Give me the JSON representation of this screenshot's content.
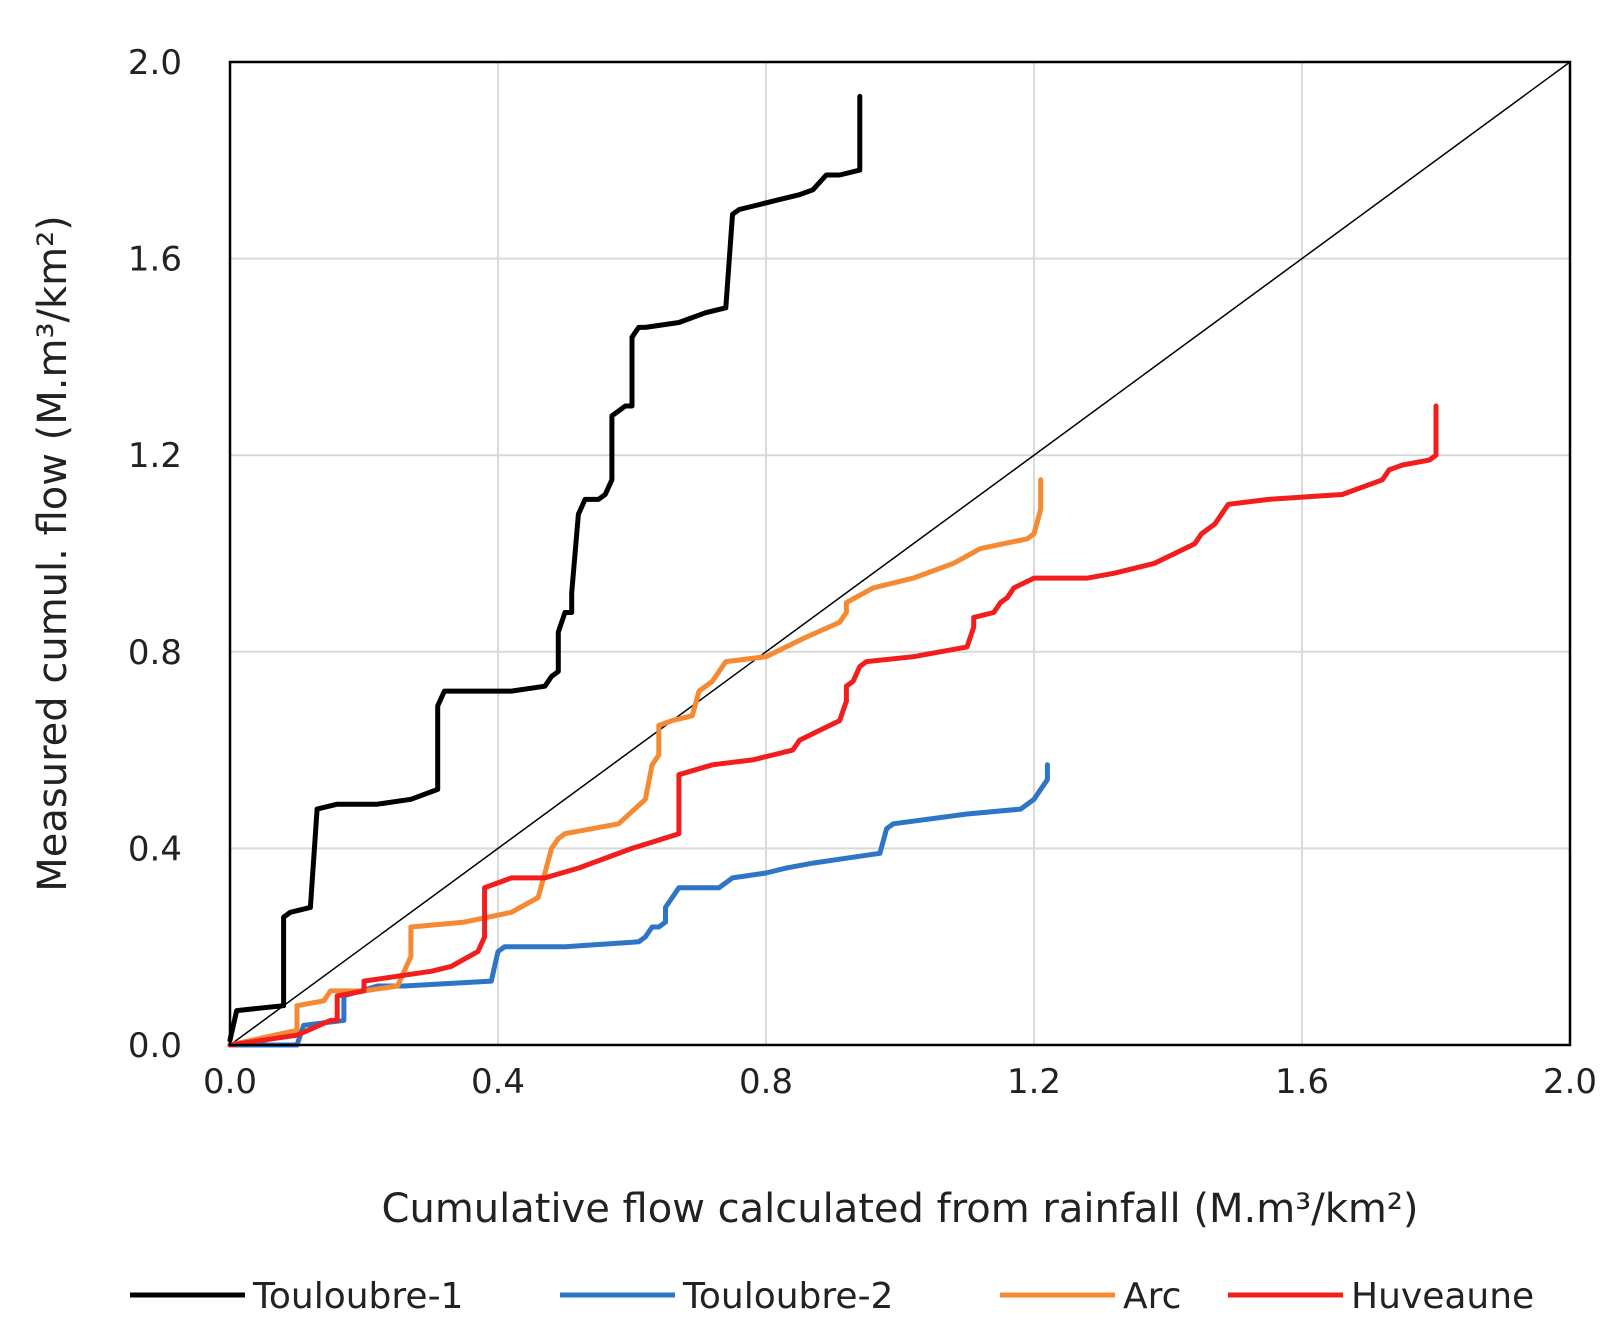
{
  "chart_data": {
    "type": "line",
    "title": "",
    "xlabel": "Cumulative flow calculated from rainfall (M.m³/km²)",
    "ylabel": "Measured cumul. flow (M.m³/km²)",
    "xlim": [
      0,
      2.0
    ],
    "ylim": [
      0,
      2.0
    ],
    "xticks": [
      "0.0",
      "0.4",
      "0.8",
      "1.2",
      "1.6",
      "2.0"
    ],
    "yticks": [
      "0.0",
      "0.4",
      "0.8",
      "1.2",
      "1.6",
      "2.0"
    ],
    "grid": true,
    "legend_position": "bottom",
    "reference_line": {
      "name": "1:1 line",
      "color": "#000000",
      "x": [
        0,
        2.0
      ],
      "y": [
        0,
        2.0
      ]
    },
    "series": [
      {
        "name": "Touloubre-1",
        "color": "#000000",
        "x": [
          0,
          0.01,
          0.08,
          0.08,
          0.09,
          0.12,
          0.13,
          0.16,
          0.22,
          0.27,
          0.31,
          0.31,
          0.32,
          0.34,
          0.42,
          0.47,
          0.48,
          0.49,
          0.49,
          0.5,
          0.51,
          0.51,
          0.52,
          0.53,
          0.55,
          0.56,
          0.57,
          0.57,
          0.59,
          0.6,
          0.6,
          0.61,
          0.62,
          0.67,
          0.71,
          0.74,
          0.75,
          0.76,
          0.82,
          0.85,
          0.87,
          0.89,
          0.91,
          0.94,
          0.94
        ],
        "y": [
          0.01,
          0.07,
          0.08,
          0.26,
          0.27,
          0.28,
          0.48,
          0.49,
          0.49,
          0.5,
          0.52,
          0.69,
          0.72,
          0.72,
          0.72,
          0.73,
          0.75,
          0.76,
          0.84,
          0.88,
          0.88,
          0.92,
          1.08,
          1.11,
          1.11,
          1.12,
          1.15,
          1.28,
          1.3,
          1.3,
          1.44,
          1.46,
          1.46,
          1.47,
          1.49,
          1.5,
          1.69,
          1.7,
          1.72,
          1.73,
          1.74,
          1.77,
          1.77,
          1.78,
          1.93
        ]
      },
      {
        "name": "Touloubre-2",
        "color": "#2E75C8",
        "x": [
          0,
          0.1,
          0.11,
          0.17,
          0.17,
          0.22,
          0.26,
          0.39,
          0.4,
          0.41,
          0.5,
          0.61,
          0.62,
          0.63,
          0.64,
          0.65,
          0.65,
          0.66,
          0.67,
          0.73,
          0.75,
          0.8,
          0.83,
          0.87,
          0.92,
          0.97,
          0.98,
          0.99,
          1.1,
          1.18,
          1.2,
          1.21,
          1.22,
          1.22
        ],
        "y": [
          0,
          0,
          0.04,
          0.05,
          0.1,
          0.12,
          0.12,
          0.13,
          0.19,
          0.2,
          0.2,
          0.21,
          0.22,
          0.24,
          0.24,
          0.25,
          0.28,
          0.3,
          0.32,
          0.32,
          0.34,
          0.35,
          0.36,
          0.37,
          0.38,
          0.39,
          0.44,
          0.45,
          0.47,
          0.48,
          0.5,
          0.52,
          0.54,
          0.57
        ]
      },
      {
        "name": "Arc",
        "color": "#F58A33",
        "x": [
          0,
          0.1,
          0.1,
          0.14,
          0.15,
          0.2,
          0.25,
          0.27,
          0.27,
          0.35,
          0.42,
          0.46,
          0.47,
          0.48,
          0.49,
          0.5,
          0.58,
          0.62,
          0.63,
          0.64,
          0.64,
          0.66,
          0.69,
          0.7,
          0.72,
          0.74,
          0.8,
          0.86,
          0.91,
          0.92,
          0.92,
          0.96,
          1.02,
          1.08,
          1.12,
          1.19,
          1.2,
          1.21,
          1.21
        ],
        "y": [
          0,
          0.03,
          0.08,
          0.09,
          0.11,
          0.11,
          0.12,
          0.18,
          0.24,
          0.25,
          0.27,
          0.3,
          0.35,
          0.4,
          0.42,
          0.43,
          0.45,
          0.5,
          0.57,
          0.59,
          0.65,
          0.66,
          0.67,
          0.72,
          0.74,
          0.78,
          0.79,
          0.83,
          0.86,
          0.88,
          0.9,
          0.93,
          0.95,
          0.98,
          1.01,
          1.03,
          1.04,
          1.09,
          1.15
        ]
      },
      {
        "name": "Huveaune",
        "color": "#F21D1D",
        "x": [
          0,
          0.1,
          0.15,
          0.16,
          0.16,
          0.2,
          0.2,
          0.3,
          0.3,
          0.33,
          0.37,
          0.38,
          0.38,
          0.42,
          0.47,
          0.52,
          0.6,
          0.67,
          0.67,
          0.72,
          0.78,
          0.81,
          0.84,
          0.85,
          0.88,
          0.91,
          0.92,
          0.92,
          0.93,
          0.94,
          0.95,
          1.02,
          1.1,
          1.11,
          1.11,
          1.14,
          1.15,
          1.16,
          1.17,
          1.2,
          1.28,
          1.32,
          1.38,
          1.44,
          1.45,
          1.47,
          1.49,
          1.55,
          1.66,
          1.72,
          1.73,
          1.75,
          1.79,
          1.8,
          1.8
        ],
        "y": [
          0,
          0.02,
          0.05,
          0.05,
          0.1,
          0.11,
          0.13,
          0.15,
          0.15,
          0.16,
          0.19,
          0.22,
          0.32,
          0.34,
          0.34,
          0.36,
          0.4,
          0.43,
          0.55,
          0.57,
          0.58,
          0.59,
          0.6,
          0.62,
          0.64,
          0.66,
          0.7,
          0.73,
          0.74,
          0.77,
          0.78,
          0.79,
          0.81,
          0.85,
          0.87,
          0.88,
          0.9,
          0.91,
          0.93,
          0.95,
          0.95,
          0.96,
          0.98,
          1.02,
          1.04,
          1.06,
          1.1,
          1.11,
          1.12,
          1.15,
          1.17,
          1.18,
          1.19,
          1.2,
          1.3
        ]
      }
    ]
  }
}
